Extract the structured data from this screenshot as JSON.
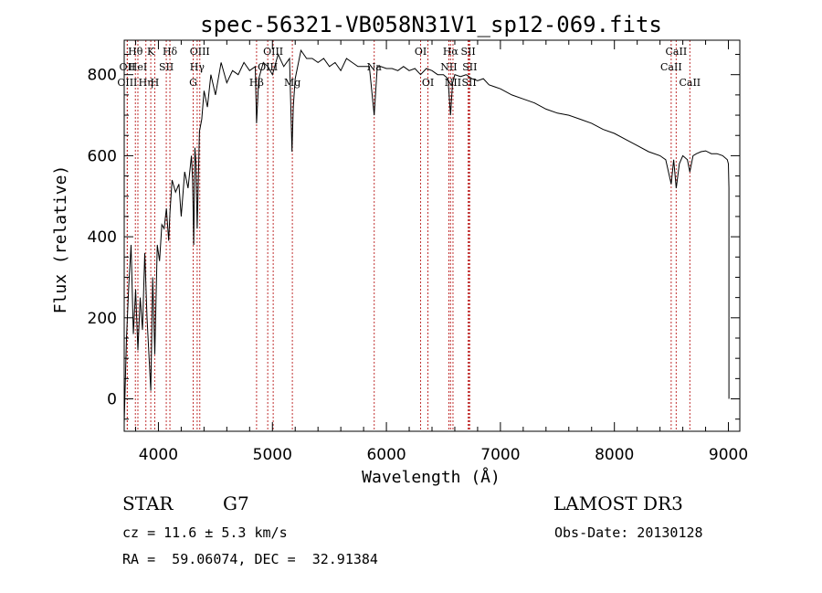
{
  "chart_data": {
    "type": "line",
    "title": "spec-56321-VB058N31V1_sp12-069.fits",
    "xlabel": "Wavelength (Å)",
    "ylabel": "Flux (relative)",
    "xlim": [
      3700,
      9100
    ],
    "ylim": [
      -80,
      885
    ],
    "xticks": [
      4000,
      5000,
      6000,
      7000,
      8000,
      9000
    ],
    "yticks": [
      0,
      200,
      400,
      600,
      800
    ],
    "grid": false,
    "series": [
      {
        "name": "flux",
        "x": [
          3700,
          3720,
          3740,
          3760,
          3780,
          3800,
          3820,
          3840,
          3860,
          3880,
          3900,
          3920,
          3933,
          3950,
          3968,
          3990,
          4010,
          4030,
          4050,
          4070,
          4090,
          4101,
          4120,
          4150,
          4180,
          4200,
          4230,
          4260,
          4290,
          4300,
          4310,
          4320,
          4330,
          4340,
          4360,
          4380,
          4400,
          4430,
          4460,
          4500,
          4550,
          4600,
          4650,
          4700,
          4750,
          4800,
          4850,
          4861,
          4880,
          4920,
          4960,
          5000,
          5050,
          5100,
          5150,
          5172,
          5183,
          5200,
          5250,
          5300,
          5350,
          5400,
          5450,
          5500,
          5550,
          5600,
          5650,
          5700,
          5750,
          5800,
          5850,
          5893,
          5920,
          5950,
          6000,
          6050,
          6100,
          6150,
          6200,
          6250,
          6300,
          6350,
          6400,
          6450,
          6500,
          6540,
          6563,
          6580,
          6600,
          6650,
          6700,
          6750,
          6800,
          6850,
          6900,
          6950,
          7000,
          7100,
          7200,
          7300,
          7400,
          7500,
          7600,
          7700,
          7800,
          7900,
          8000,
          8100,
          8200,
          8300,
          8400,
          8450,
          8498,
          8520,
          8542,
          8570,
          8600,
          8640,
          8662,
          8690,
          8720,
          8760,
          8800,
          8850,
          8900,
          8950,
          8990,
          9000,
          9005,
          9005
        ],
        "values": [
          -60,
          150,
          280,
          380,
          160,
          270,
          120,
          250,
          170,
          360,
          200,
          90,
          20,
          300,
          110,
          380,
          340,
          430,
          420,
          470,
          390,
          460,
          540,
          510,
          530,
          450,
          560,
          520,
          600,
          540,
          380,
          620,
          580,
          420,
          660,
          690,
          760,
          720,
          800,
          750,
          830,
          780,
          810,
          800,
          830,
          810,
          820,
          680,
          790,
          830,
          820,
          800,
          850,
          820,
          840,
          610,
          720,
          790,
          860,
          840,
          840,
          830,
          840,
          820,
          830,
          810,
          840,
          830,
          820,
          820,
          820,
          700,
          820,
          820,
          815,
          815,
          810,
          820,
          810,
          815,
          800,
          815,
          810,
          800,
          800,
          790,
          700,
          780,
          800,
          795,
          800,
          790,
          785,
          790,
          775,
          770,
          765,
          750,
          740,
          730,
          715,
          705,
          700,
          690,
          680,
          665,
          655,
          640,
          625,
          610,
          600,
          590,
          530,
          590,
          520,
          580,
          600,
          590,
          560,
          600,
          605,
          610,
          612,
          605,
          605,
          600,
          590,
          580,
          520,
          0
        ]
      }
    ],
    "spectral_lines": [
      {
        "label": "Hθ",
        "x": 3798,
        "row": 1
      },
      {
        "label": "OII",
        "x": 3727,
        "row": 2
      },
      {
        "label": "OIII",
        "x": 3727,
        "row": 3
      },
      {
        "label": "HeI",
        "x": 3820,
        "row": 2
      },
      {
        "label": "K",
        "x": 3933,
        "row": 1
      },
      {
        "label": "Hη",
        "x": 3890,
        "row": 3
      },
      {
        "label": "SII",
        "x": 4069,
        "row": 2
      },
      {
        "label": "H",
        "x": 3968,
        "row": 3
      },
      {
        "label": "Hδ",
        "x": 4101,
        "row": 1
      },
      {
        "label": "OIII",
        "x": 4363,
        "row": 1
      },
      {
        "label": "Hγ",
        "x": 4340,
        "row": 2
      },
      {
        "label": "G",
        "x": 4305,
        "row": 3
      },
      {
        "label": "OIII",
        "x": 5007,
        "row": 1
      },
      {
        "label": "OIII",
        "x": 4959,
        "row": 2
      },
      {
        "label": "Hβ",
        "x": 4861,
        "row": 3
      },
      {
        "label": "Mg",
        "x": 5175,
        "row": 3
      },
      {
        "label": "Na",
        "x": 5893,
        "row": 2
      },
      {
        "label": "OI",
        "x": 6300,
        "row": 1
      },
      {
        "label": "OI",
        "x": 6364,
        "row": 3
      },
      {
        "label": "Hα",
        "x": 6563,
        "row": 1
      },
      {
        "label": "SII",
        "x": 6717,
        "row": 1
      },
      {
        "label": "NII",
        "x": 6548,
        "row": 2
      },
      {
        "label": "SII",
        "x": 6731,
        "row": 2
      },
      {
        "label": "NII",
        "x": 6584,
        "row": 3
      },
      {
        "label": "SII",
        "x": 6725,
        "row": 3
      },
      {
        "label": "CaII",
        "x": 8542,
        "row": 1
      },
      {
        "label": "CaII",
        "x": 8498,
        "row": 2
      },
      {
        "label": "CaII",
        "x": 8662,
        "row": 3
      }
    ]
  },
  "info": {
    "class": "STAR",
    "subclass": "G7",
    "cz": "cz = 11.6 ± 5.3 km/s",
    "radec": "RA =  59.06074, DEC =  32.91384",
    "survey": "LAMOST DR3",
    "obsdate": "Obs-Date: 20130128"
  }
}
